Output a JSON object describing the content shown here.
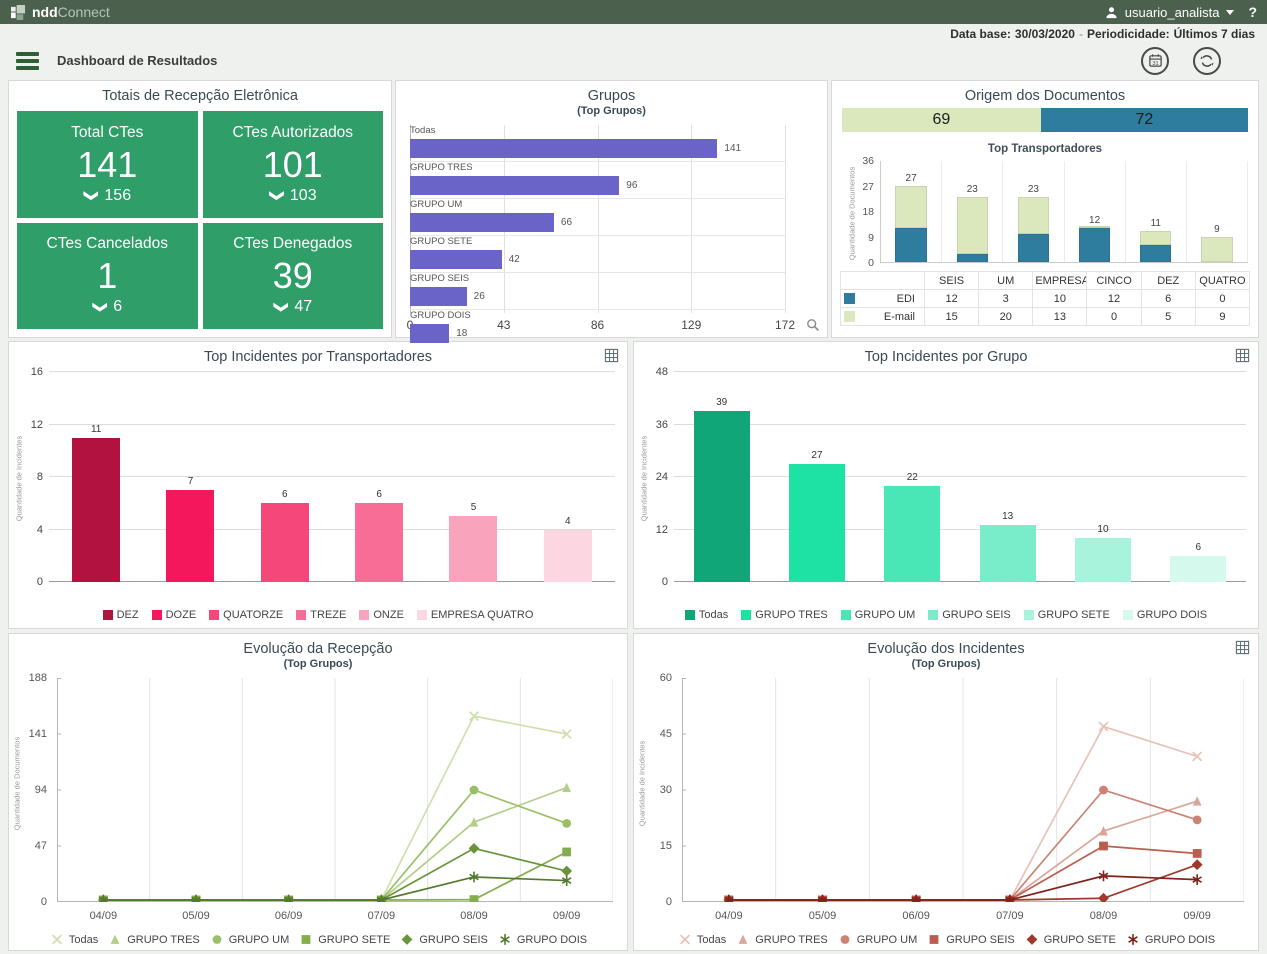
{
  "topbar": {
    "logo_bold": "ndd",
    "logo_light": "Connect",
    "user": "usuario_analista",
    "help": "?"
  },
  "infobar": {
    "label1": "Data base:",
    "value1": "30/03/2020",
    "separator": "-",
    "label2": "Periodicidade:",
    "value2": "Últimos 7 dias"
  },
  "header": {
    "title": "Dashboard de Resultados"
  },
  "colors": {
    "topbar_bg": "#4b614d",
    "card_green": "#2f9e68",
    "purple": "#6a63c8",
    "teal": "#2f7d9e",
    "light_green": "#dbe7bd",
    "body_bg": "#eff1ef",
    "panel_title": "#3a4a54"
  },
  "cards": {
    "title": "Totais de Recepção Eletrônica",
    "items": [
      {
        "label": "Total CTes",
        "value": "141",
        "sub": "156"
      },
      {
        "label": "CTes Autorizados",
        "value": "101",
        "sub": "103"
      },
      {
        "label": "CTes Cancelados",
        "value": "1",
        "sub": "6"
      },
      {
        "label": "CTes Denegados",
        "value": "39",
        "sub": "47"
      }
    ]
  },
  "chart_data": [
    {
      "id": "grupos",
      "type": "bar",
      "orientation": "horizontal",
      "title": "Grupos",
      "subtitle": "(Top Grupos)",
      "categories": [
        "Todas",
        "GRUPO TRES",
        "GRUPO UM",
        "GRUPO SETE",
        "GRUPO SEIS",
        "GRUPO DOIS"
      ],
      "values": [
        141,
        96,
        66,
        42,
        26,
        18
      ],
      "xlim": [
        0,
        172
      ],
      "xticks": [
        0,
        43,
        86,
        129,
        172
      ],
      "bar_color": "#6a63c8"
    },
    {
      "id": "origem",
      "type": "stacked-bar",
      "title": "Origem dos Documentos",
      "subtitle": "Top Transportadores",
      "ylabel": "Quantidade de Documentos",
      "ylim": [
        0,
        36
      ],
      "yticks": [
        36,
        27,
        18,
        9,
        0
      ],
      "summary": [
        {
          "label": "69",
          "value": 69,
          "color": "#dbe7bd"
        },
        {
          "label": "72",
          "value": 72,
          "color": "#2f7d9e"
        }
      ],
      "categories": [
        "SEIS",
        "UM",
        "EMPRESA...",
        "CINCO",
        "DEZ",
        "QUATRO"
      ],
      "series": [
        {
          "name": "EDI",
          "color": "#2f7d9e",
          "values": [
            12,
            3,
            10,
            12,
            6,
            0
          ]
        },
        {
          "name": "E-mail",
          "color": "#dbe7bd",
          "values": [
            15,
            20,
            13,
            0,
            5,
            9
          ]
        }
      ],
      "totals": [
        27,
        23,
        23,
        12,
        11,
        9
      ]
    },
    {
      "id": "incidentes_transportadores",
      "type": "bar",
      "title": "Top Incidentes por Transportadores",
      "ylabel": "Quantidade de Incidentes",
      "ylim": [
        0,
        16
      ],
      "yticks": [
        16,
        12,
        8,
        4,
        0
      ],
      "categories": [
        "DEZ",
        "DOZE",
        "QUATORZE",
        "TREZE",
        "ONZE",
        "EMPRESA QUATRO"
      ],
      "values": [
        11,
        7,
        6,
        6,
        5,
        4
      ],
      "colors": [
        "#b2123f",
        "#f5175c",
        "#f6477b",
        "#f76d95",
        "#f9a3bc",
        "#fcd7e2"
      ]
    },
    {
      "id": "incidentes_grupo",
      "type": "bar",
      "title": "Top Incidentes por Grupo",
      "ylabel": "Quantidade de Incidentes",
      "ylim": [
        0,
        48
      ],
      "yticks": [
        48,
        36,
        24,
        12,
        0
      ],
      "categories": [
        "Todas",
        "GRUPO TRES",
        "GRUPO UM",
        "GRUPO SEIS",
        "GRUPO SETE",
        "GRUPO DOIS"
      ],
      "values": [
        39,
        27,
        22,
        13,
        10,
        6
      ],
      "colors": [
        "#10a678",
        "#1ee2a4",
        "#49e7b6",
        "#79edc9",
        "#a7f3db",
        "#d5f9ed"
      ]
    },
    {
      "id": "evolucao_recepcao",
      "type": "line",
      "title": "Evolução da Recepção",
      "subtitle": "(Top Grupos)",
      "ylabel": "Quantidade de Documentos",
      "ylim": [
        0,
        188
      ],
      "yticks": [
        188,
        141,
        94,
        47,
        0
      ],
      "x": [
        "04/09",
        "05/09",
        "06/09",
        "07/09",
        "08/09",
        "09/09"
      ],
      "series": [
        {
          "name": "Todas",
          "marker": "x",
          "color": "#cfe0ae",
          "values": [
            0,
            0,
            0,
            0,
            156,
            141
          ]
        },
        {
          "name": "GRUPO TRES",
          "marker": "triangle",
          "color": "#b4cd8b",
          "values": [
            0,
            0,
            0,
            0,
            67,
            96
          ]
        },
        {
          "name": "GRUPO UM",
          "marker": "circle",
          "color": "#9abf67",
          "values": [
            0,
            0,
            0,
            0,
            94,
            66
          ]
        },
        {
          "name": "GRUPO SETE",
          "marker": "square",
          "color": "#84ae4b",
          "values": [
            0,
            0,
            0,
            0,
            2,
            42
          ]
        },
        {
          "name": "GRUPO SEIS",
          "marker": "diamond",
          "color": "#6a943b",
          "values": [
            0,
            0,
            0,
            0,
            45,
            26
          ]
        },
        {
          "name": "GRUPO DOIS",
          "marker": "asterisk",
          "color": "#53782f",
          "values": [
            0,
            0,
            0,
            0,
            21,
            18
          ]
        }
      ]
    },
    {
      "id": "evolucao_incidentes",
      "type": "line",
      "title": "Evolução dos Incidentes",
      "subtitle": "(Top Grupos)",
      "ylabel": "Quantidade de Incidentes",
      "ylim": [
        0,
        60
      ],
      "yticks": [
        60,
        45,
        30,
        15,
        0
      ],
      "x": [
        "04/09",
        "05/09",
        "06/09",
        "07/09",
        "08/09",
        "09/09"
      ],
      "series": [
        {
          "name": "Todas",
          "marker": "x",
          "color": "#e7c2b8",
          "values": [
            0,
            0,
            0,
            0,
            47,
            39
          ]
        },
        {
          "name": "GRUPO TRES",
          "marker": "triangle",
          "color": "#d9a79a",
          "values": [
            0,
            0,
            0,
            0,
            19,
            27
          ]
        },
        {
          "name": "GRUPO UM",
          "marker": "circle",
          "color": "#cc8376",
          "values": [
            0,
            0,
            0,
            0,
            30,
            22
          ]
        },
        {
          "name": "GRUPO SEIS",
          "marker": "square",
          "color": "#bc5e4f",
          "values": [
            0,
            0,
            0,
            0,
            15,
            13
          ]
        },
        {
          "name": "GRUPO SETE",
          "marker": "diamond",
          "color": "#9e392c",
          "values": [
            0,
            0,
            0,
            0,
            1,
            10
          ]
        },
        {
          "name": "GRUPO DOIS",
          "marker": "asterisk",
          "color": "#7d2318",
          "values": [
            0,
            0,
            0,
            0,
            7,
            6
          ]
        }
      ]
    }
  ]
}
